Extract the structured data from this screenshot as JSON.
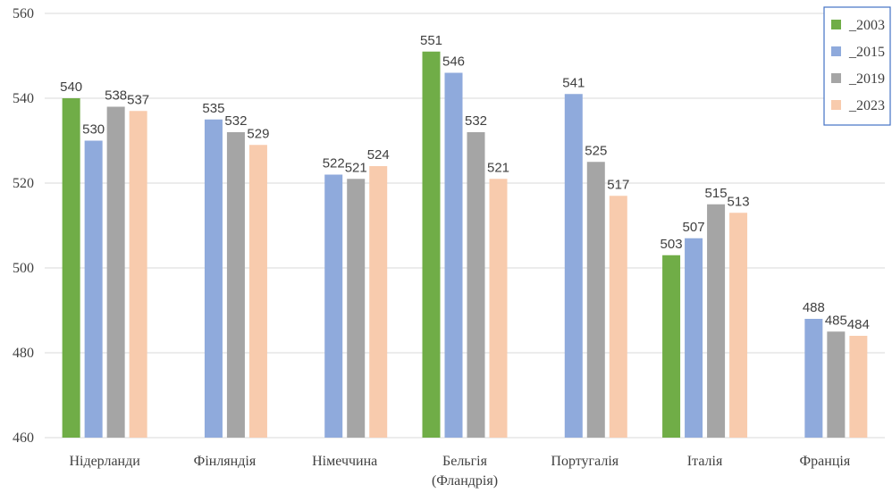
{
  "chart_data": {
    "type": "bar",
    "categories": [
      [
        "Нідерланди"
      ],
      [
        "Фінляндія"
      ],
      [
        "Німеччина"
      ],
      [
        "Бельгія",
        "(Фландрія)"
      ],
      [
        "Португалія"
      ],
      [
        "Італія"
      ],
      [
        "Франція"
      ]
    ],
    "series": [
      {
        "name": "_2003",
        "color": "#70ad47",
        "values": [
          540,
          null,
          null,
          551,
          null,
          503,
          null
        ]
      },
      {
        "name": "_2015",
        "color": "#8faadc",
        "values": [
          530,
          535,
          522,
          546,
          541,
          507,
          488
        ]
      },
      {
        "name": "_2019",
        "color": "#a5a5a5",
        "values": [
          538,
          532,
          521,
          532,
          525,
          515,
          485
        ]
      },
      {
        "name": "_2023",
        "color": "#f8cbad",
        "values": [
          537,
          529,
          524,
          521,
          517,
          513,
          484
        ]
      }
    ],
    "ylim": [
      460,
      560
    ],
    "yticks": [
      460,
      480,
      500,
      520,
      540,
      560
    ],
    "grid": true,
    "legend_position": "top-right",
    "data_labels": true
  }
}
